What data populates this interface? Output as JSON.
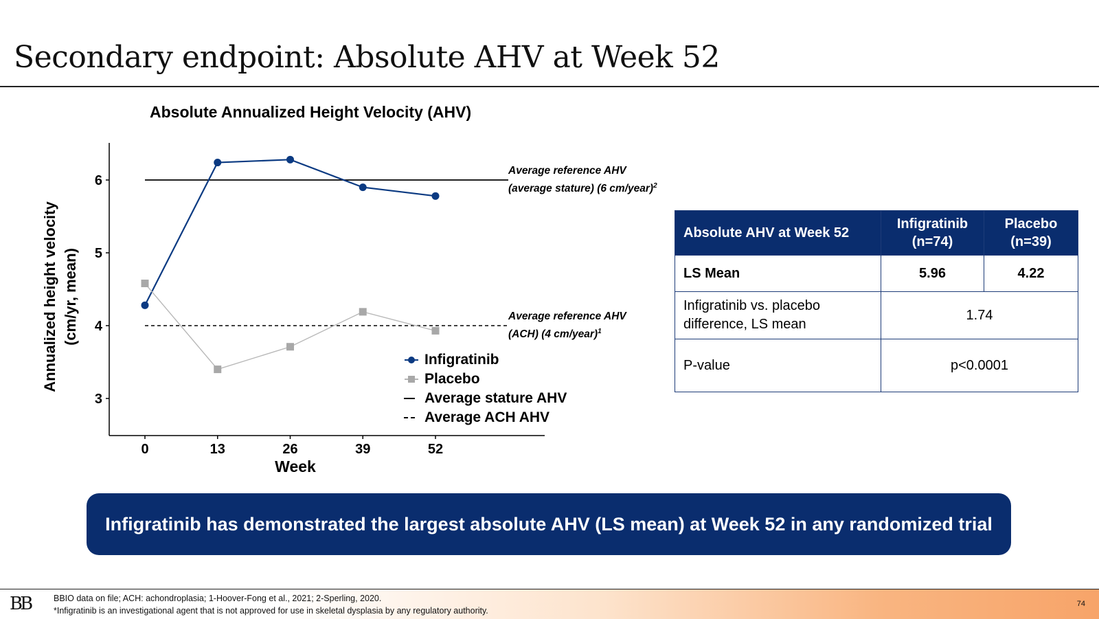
{
  "slide": {
    "title": "Secondary endpoint: Absolute AHV at Week 52",
    "banner": "Infigratinib has demonstrated the largest absolute AHV (LS mean) at Week 52 in any randomized trial",
    "page_number": "74"
  },
  "chart_data": {
    "type": "line",
    "title": "Absolute Annualized Height Velocity (AHV)",
    "xlabel": "Week",
    "ylabel_line1": "Annualized height velocity",
    "ylabel_line2": "(cm/yr, mean)",
    "x": [
      0,
      13,
      26,
      39,
      52
    ],
    "x_ticks": [
      "0",
      "13",
      "26",
      "39",
      "52"
    ],
    "y_ticks": [
      "3",
      "4",
      "5",
      "6"
    ],
    "ylim": [
      2.5,
      6.5
    ],
    "series": [
      {
        "name": "Infigratinib",
        "marker": "circle",
        "color": "#0b3a82",
        "values": [
          4.28,
          6.24,
          6.28,
          5.9,
          5.78
        ]
      },
      {
        "name": "Placebo",
        "marker": "square",
        "color": "#a8a8a8",
        "values": [
          4.58,
          3.4,
          3.71,
          4.19,
          3.93
        ]
      }
    ],
    "reference_lines": [
      {
        "name": "Average stature AHV",
        "value": 6,
        "style": "solid",
        "label_line1": "Average reference AHV",
        "label_line2": "(average stature) (6 cm/year)",
        "sup": "2"
      },
      {
        "name": "Average ACH AHV",
        "value": 4,
        "style": "dashed",
        "label_line1": "Average reference AHV",
        "label_line2": "(ACH) (4 cm/year)",
        "sup": "1"
      }
    ],
    "legend": [
      "Infigratinib",
      "Placebo",
      "Average stature AHV",
      "Average ACH AHV"
    ],
    "legend_position": "bottom-right",
    "grid": false
  },
  "table": {
    "header": [
      "Absolute AHV at Week 52",
      "Infigratinib\n(n=74)",
      "Placebo\n(n=39)"
    ],
    "rows": {
      "ls_mean": {
        "label": "LS Mean",
        "infigratinib": "5.96",
        "placebo": "4.22"
      },
      "difference": {
        "label": "Infigratinib vs. placebo difference, LS mean",
        "value": "1.74"
      },
      "p_value": {
        "label": "P-value",
        "value": "p<0.0001"
      }
    }
  },
  "footer": {
    "logo": "BB",
    "line1": "BBIO data on file; ACH: achondroplasia; 1-Hoover-Fong et al., 2021; 2-Sperling, 2020.",
    "line2": "*Infigratinib is an investigational agent that is not approved for use in skeletal dysplasia by any regulatory authority."
  }
}
